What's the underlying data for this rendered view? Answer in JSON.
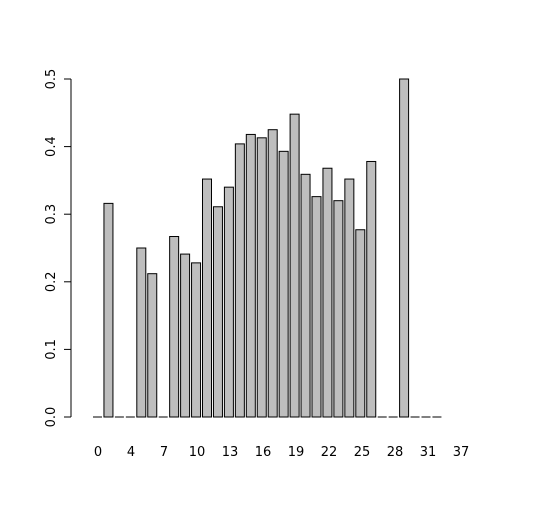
{
  "chart_data": {
    "type": "bar",
    "title": "",
    "xlabel": "",
    "ylabel": "",
    "ylim": [
      0,
      0.5
    ],
    "yticks": [
      0.0,
      0.1,
      0.2,
      0.3,
      0.4,
      0.5
    ],
    "ytick_labels": [
      "0.0",
      "0.1",
      "0.2",
      "0.3",
      "0.4",
      "0.5"
    ],
    "categories": [
      "0",
      "1",
      "2",
      "3",
      "4",
      "5",
      "6",
      "7",
      "8",
      "9",
      "10",
      "11",
      "12",
      "13",
      "14",
      "15",
      "16",
      "17",
      "18",
      "19",
      "20",
      "21",
      "22",
      "23",
      "24",
      "25",
      "26",
      "27",
      "28",
      "29",
      "30",
      "31"
    ],
    "xtick_labels": [
      "0",
      "4",
      "7",
      "10",
      "13",
      "16",
      "19",
      "22",
      "25",
      "28",
      "31",
      "37"
    ],
    "values": [
      0,
      0.316,
      0,
      0,
      0.25,
      0.212,
      0,
      0.267,
      0.241,
      0.228,
      0.352,
      0.311,
      0.34,
      0.404,
      0.418,
      0.413,
      0.425,
      0.393,
      0.448,
      0.359,
      0.326,
      0.368,
      0.32,
      0.352,
      0.277,
      0.378,
      0,
      0,
      0.5,
      0,
      0,
      0
    ],
    "colors": {
      "bar_fill": "#bebebe",
      "bar_stroke": "#000000"
    },
    "grid": false,
    "legend": "none"
  }
}
